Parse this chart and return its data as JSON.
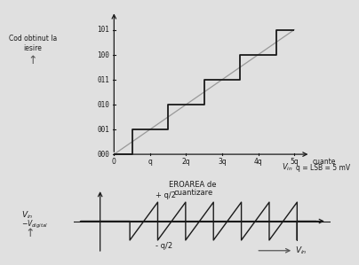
{
  "top_yticks": [
    "000",
    "001",
    "010",
    "011",
    "100",
    "101"
  ],
  "top_xticks_labels": [
    "0",
    "q",
    "2q",
    "3q",
    "4q",
    "5q"
  ],
  "top_xticks_pos": [
    0,
    1,
    2,
    3,
    4,
    5
  ],
  "top_xlabel_extra": "cuante",
  "top_xlabel_q": "q = LSB = 5 mV",
  "top_ylabel_line1": "Cod obtinut la",
  "top_ylabel_line2": "iesire",
  "bottom_title_line1": "EROAREA de",
  "bottom_title_line2": "cuantizare",
  "plus_q2": "+ q/2",
  "minus_q2": "- q/2",
  "bg_color": "#e0e0e0",
  "line_color": "#1a1a1a",
  "diagonal_color": "#999999",
  "arrow_color": "#555555"
}
